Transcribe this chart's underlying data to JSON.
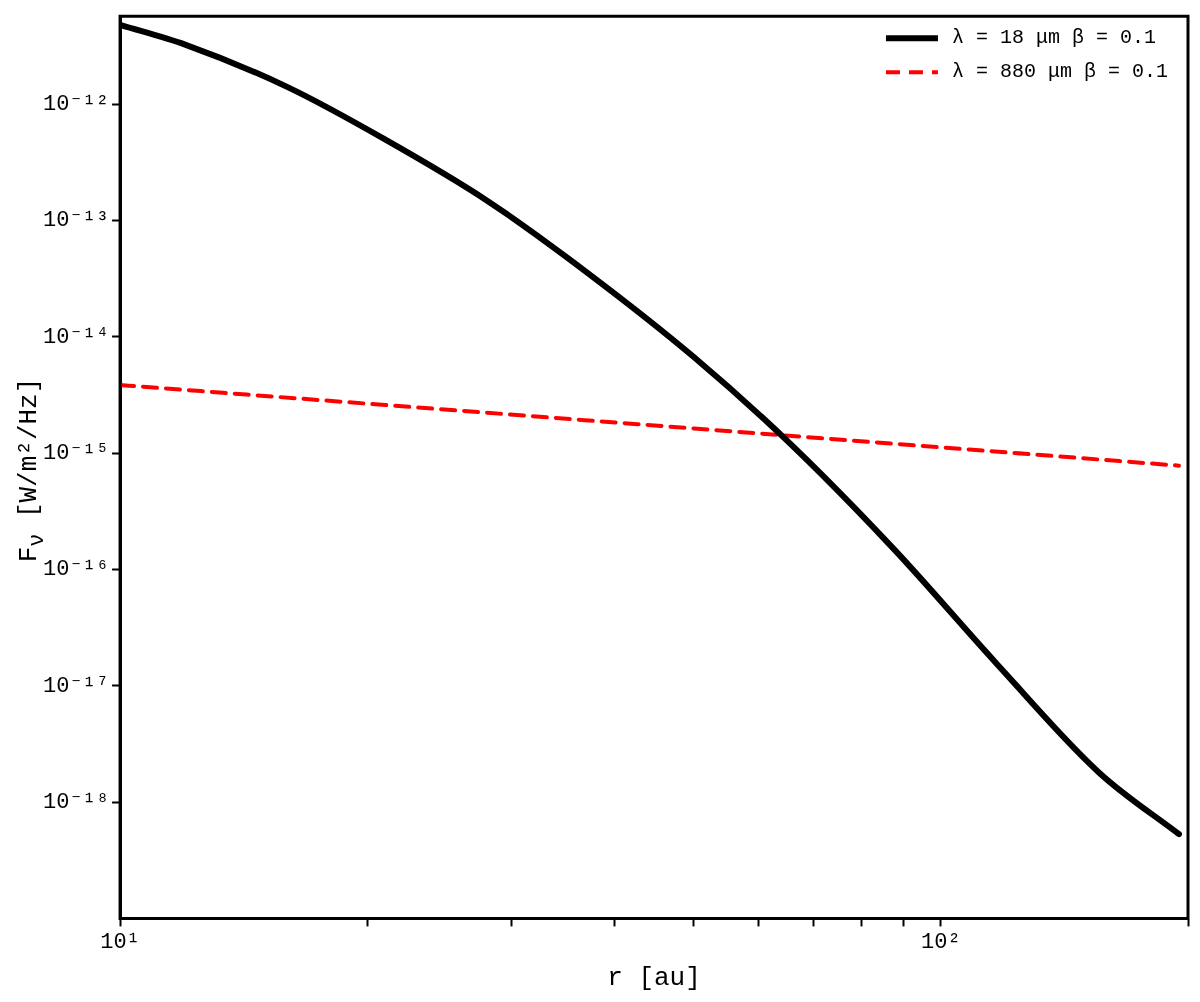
{
  "chart_data": {
    "type": "line",
    "xlabel": "r [au]",
    "ylabel": "F$_{ν}$ [W/m²/Hz]",
    "log": "xy",
    "legend": "top right",
    "grid": false,
    "marker": "none",
    "xlim": [
      10,
      200
    ],
    "ylim": [
      1e-19,
      5.7e-12
    ],
    "xticks": [
      {
        "value": 10,
        "label": "10¹"
      },
      {
        "value": 20,
        "label": null
      },
      {
        "value": 30,
        "label": null
      },
      {
        "value": 40,
        "label": null
      },
      {
        "value": 50,
        "label": null
      },
      {
        "value": 60,
        "label": null
      },
      {
        "value": 70,
        "label": null
      },
      {
        "value": 80,
        "label": null
      },
      {
        "value": 90,
        "label": null
      },
      {
        "value": 100,
        "label": "10²"
      },
      {
        "value": 200,
        "label": null
      }
    ],
    "yticks": [
      {
        "value": 1e-18,
        "label": "10⁻¹⁸"
      },
      {
        "value": 1e-17,
        "label": "10⁻¹⁷"
      },
      {
        "value": 1e-16,
        "label": "10⁻¹⁶"
      },
      {
        "value": 1e-15,
        "label": "10⁻¹⁵"
      },
      {
        "value": 1e-14,
        "label": "10⁻¹⁴"
      },
      {
        "value": 1e-13,
        "label": "10⁻¹³"
      },
      {
        "value": 1e-12,
        "label": "10⁻¹²"
      }
    ],
    "series": [
      {
        "name": "λ = 18 μm β = 0.1",
        "color": "#000000",
        "line_style": "solid",
        "x": [
          10,
          12,
          16,
          21,
          28,
          37,
          50,
          66,
          88,
          117,
          156,
          195
        ],
        "values": [
          4.8e-12,
          3.25e-12,
          1.4e-12,
          5e-13,
          1.48e-13,
          3.6e-14,
          6.7e-15,
          1.15e-15,
          1.45e-16,
          1.54e-17,
          1.78e-18,
          5.3e-19
        ]
      },
      {
        "name": "λ = 880 μm β = 0.1",
        "color": "#ff0000",
        "line_style": "dashed",
        "x": [
          10,
          50,
          195
        ],
        "values": [
          3.85e-15,
          1.63e-15,
          7.8e-16
        ]
      }
    ]
  }
}
